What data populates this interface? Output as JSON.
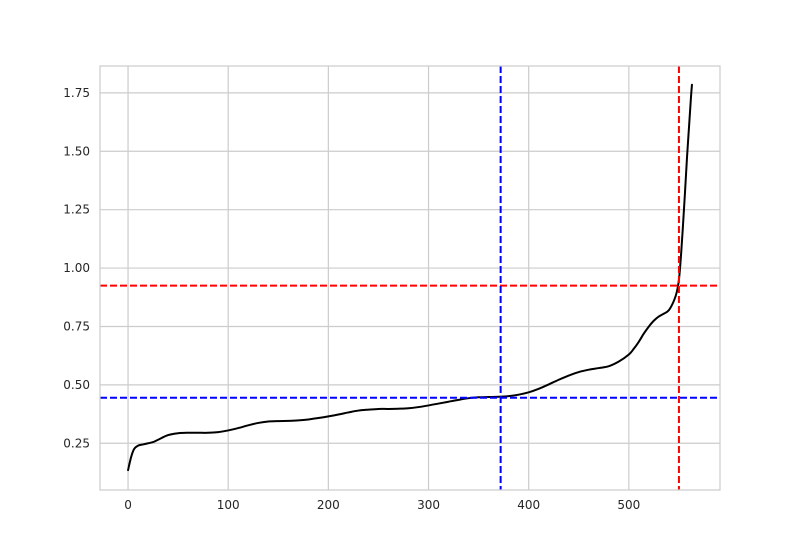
{
  "chart_data": {
    "type": "line",
    "title": "",
    "xlabel": "",
    "ylabel": "",
    "xlim": [
      -28,
      591
    ],
    "ylim": [
      0.05,
      1.865
    ],
    "grid": true,
    "x_ticks": [
      0,
      100,
      200,
      300,
      400,
      500
    ],
    "y_ticks": [
      0.25,
      0.5,
      0.75,
      1.0,
      1.25,
      1.5,
      1.75
    ],
    "x_tick_labels": [
      "0",
      "100",
      "200",
      "300",
      "400",
      "500"
    ],
    "y_tick_labels": [
      "0.25",
      "0.50",
      "0.75",
      "1.00",
      "1.25",
      "1.50",
      "1.75"
    ],
    "series": [
      {
        "color": "#000000",
        "x": [
          0,
          3,
          6,
          10,
          15,
          20,
          25,
          30,
          40,
          50,
          60,
          70,
          80,
          90,
          100,
          110,
          120,
          130,
          140,
          150,
          160,
          170,
          180,
          190,
          200,
          210,
          220,
          230,
          240,
          250,
          260,
          270,
          280,
          290,
          300,
          310,
          320,
          330,
          340,
          350,
          360,
          370,
          380,
          390,
          400,
          410,
          420,
          430,
          440,
          450,
          460,
          470,
          480,
          490,
          500,
          505,
          510,
          515,
          520,
          525,
          530,
          535,
          540,
          545,
          548,
          550,
          552,
          554,
          556,
          558,
          560,
          562,
          563
        ],
        "y": [
          0.135,
          0.19,
          0.225,
          0.24,
          0.245,
          0.25,
          0.255,
          0.265,
          0.285,
          0.293,
          0.295,
          0.295,
          0.295,
          0.298,
          0.305,
          0.315,
          0.327,
          0.337,
          0.343,
          0.345,
          0.346,
          0.348,
          0.352,
          0.358,
          0.365,
          0.373,
          0.382,
          0.39,
          0.394,
          0.397,
          0.397,
          0.398,
          0.4,
          0.405,
          0.412,
          0.42,
          0.428,
          0.436,
          0.443,
          0.447,
          0.448,
          0.449,
          0.452,
          0.458,
          0.468,
          0.483,
          0.502,
          0.522,
          0.54,
          0.555,
          0.565,
          0.572,
          0.58,
          0.6,
          0.63,
          0.655,
          0.685,
          0.72,
          0.75,
          0.775,
          0.793,
          0.805,
          0.82,
          0.86,
          0.9,
          0.95,
          1.05,
          1.18,
          1.32,
          1.47,
          1.6,
          1.73,
          1.785
        ]
      }
    ],
    "reference_lines": [
      {
        "orientation": "horizontal",
        "value": 0.445,
        "color": "#0000ff"
      },
      {
        "orientation": "horizontal",
        "value": 0.925,
        "color": "#ff0000"
      },
      {
        "orientation": "vertical",
        "value": 372,
        "color": "#0000ff"
      },
      {
        "orientation": "vertical",
        "value": 550,
        "color": "#ff0000"
      }
    ]
  }
}
